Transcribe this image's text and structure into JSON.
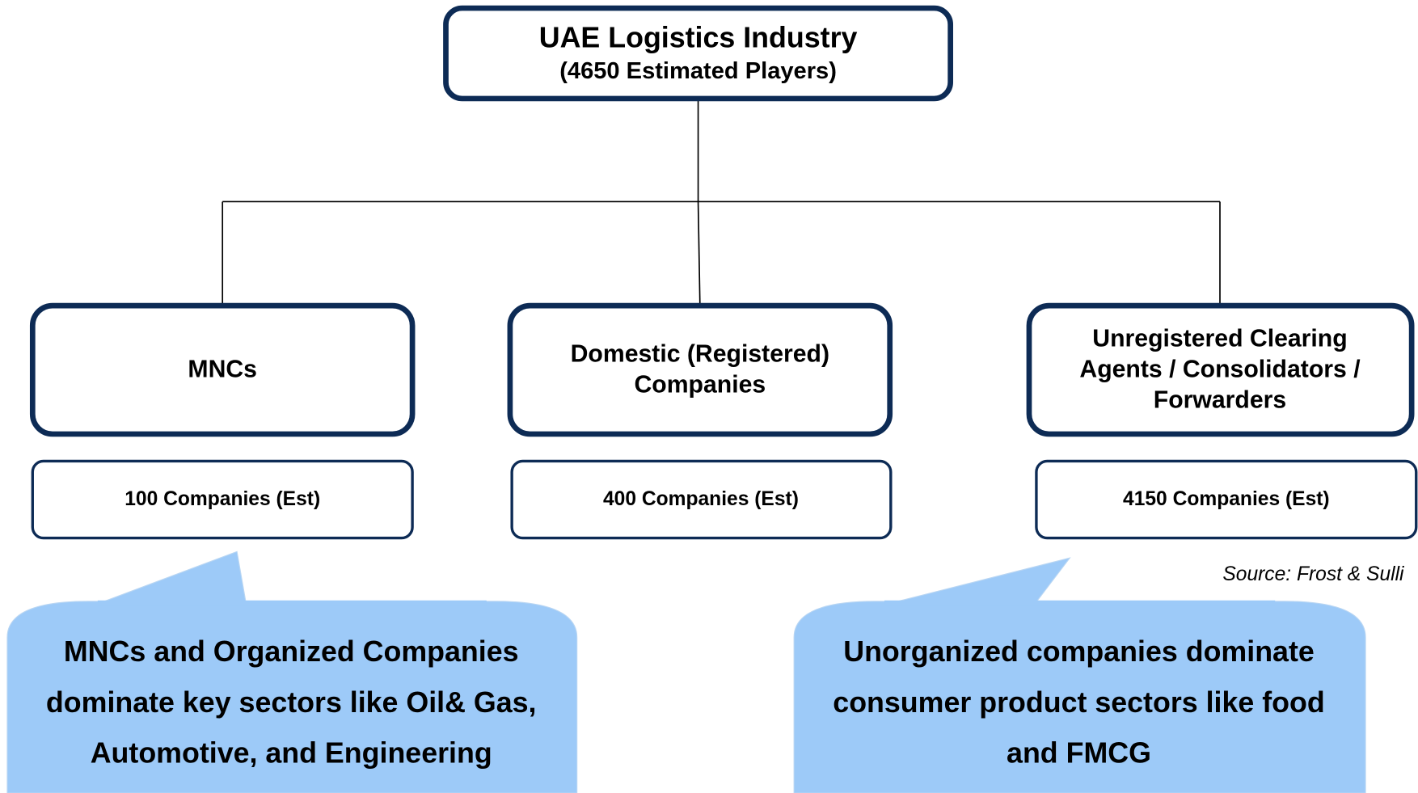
{
  "root": {
    "title": "UAE Logistics Industry",
    "subtitle": "(4650 Estimated Players)"
  },
  "nodes": [
    {
      "label": [
        "MNCs"
      ],
      "count": "100 Companies (Est)"
    },
    {
      "label": [
        "Domestic (Registered)",
        "Companies"
      ],
      "count": "400 Companies (Est)"
    },
    {
      "label": [
        "Unregistered Clearing",
        "Agents / Consolidators /",
        "Forwarders"
      ],
      "count": "4150 Companies (Est)"
    }
  ],
  "source": "Source: Frost & Sulli",
  "callouts": [
    {
      "lines": [
        "MNCs and Organized Companies",
        "dominate key sectors like Oil& Gas,",
        "Automotive, and Engineering"
      ]
    },
    {
      "lines": [
        "Unorganized companies dominate",
        "consumer product sectors like food",
        "and FMCG"
      ]
    }
  ]
}
